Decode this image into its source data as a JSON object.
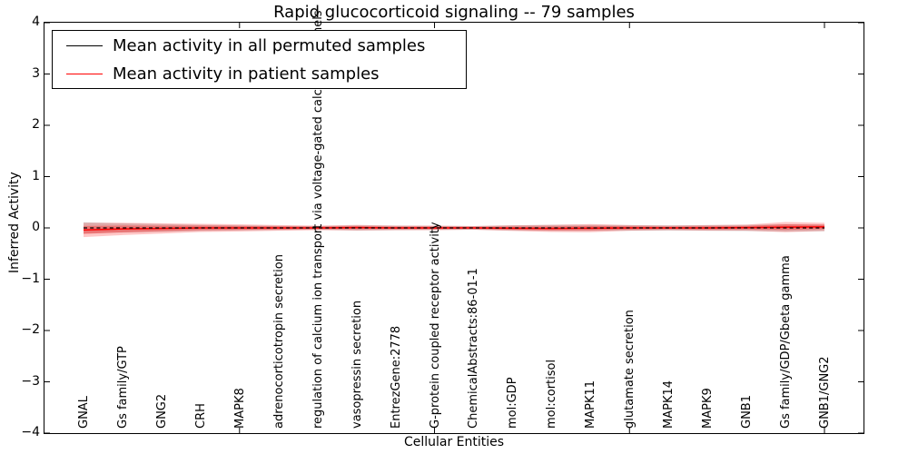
{
  "chart_data": {
    "type": "line",
    "title": "Rapid glucocorticoid signaling -- 79 samples",
    "xlabel": "Cellular Entities",
    "ylabel": "Inferred Activity",
    "ylim": [
      -4,
      4
    ],
    "y_ticks": [
      "4",
      "3",
      "2",
      "1",
      "0",
      "−1",
      "−2",
      "−3",
      "−4"
    ],
    "y_tick_values": [
      4,
      3,
      2,
      1,
      0,
      -1,
      -2,
      -3,
      -4
    ],
    "x_tick_values": [
      5,
      10,
      15,
      20
    ],
    "grid": false,
    "categories": [
      "GNAL",
      "Gs family/GTP",
      "GNG2",
      "CRH",
      "MAPK8",
      "adrenocorticotropin secretion",
      "regulation of calcium ion transport via voltage-gated calcium channels",
      "vasopressin secretion",
      "EntrezGene:2778",
      "G-protein coupled receptor activity",
      "ChemicalAbstracts:86-01-1",
      "mol:GDP",
      "mol:cortisol",
      "MAPK11",
      "glutamate secretion",
      "MAPK14",
      "MAPK9",
      "GNB1",
      "Gs family/GDP/Gbeta gamma",
      "GNB1/GNG2"
    ],
    "series": [
      {
        "name": "Mean activity in all permuted samples",
        "color": "#000000",
        "line_style": "dashed",
        "values": [
          0,
          0,
          0,
          0,
          0,
          0,
          0,
          0,
          0,
          0,
          0,
          0,
          0,
          0,
          0,
          0,
          0,
          0,
          0,
          0
        ],
        "band_halfwidth": [
          0.11,
          0.09,
          0.075,
          0.06,
          0.05,
          0.042,
          0.036,
          0.05,
          0.045,
          0.04,
          0.036,
          0.05,
          0.06,
          0.06,
          0.055,
          0.05,
          0.055,
          0.06,
          0.07,
          0.065
        ],
        "band_color": "#999999",
        "band_opacity": 0.38
      },
      {
        "name": "Mean activity in patient samples",
        "color": "#ff0000",
        "line_style": "solid",
        "values": [
          -0.04,
          -0.02,
          -0.01,
          0,
          0,
          0,
          0,
          0.005,
          0,
          0,
          0,
          -0.005,
          -0.01,
          -0.005,
          0,
          0,
          0,
          0.005,
          0.015,
          0.02
        ],
        "band_halfwidth": [
          0.14,
          0.12,
          0.1,
          0.08,
          0.07,
          0.055,
          0.045,
          0.055,
          0.045,
          0.045,
          0.035,
          0.055,
          0.07,
          0.08,
          0.055,
          0.045,
          0.055,
          0.06,
          0.1,
          0.08
        ],
        "band_color": "#ff0000",
        "band_opacity": 0.22
      }
    ],
    "legend": {
      "position": "upper left",
      "items": [
        {
          "label": "Mean activity in all permuted samples",
          "color": "#000000"
        },
        {
          "label": "Mean activity in patient samples",
          "color": "#ff0000"
        }
      ]
    }
  }
}
